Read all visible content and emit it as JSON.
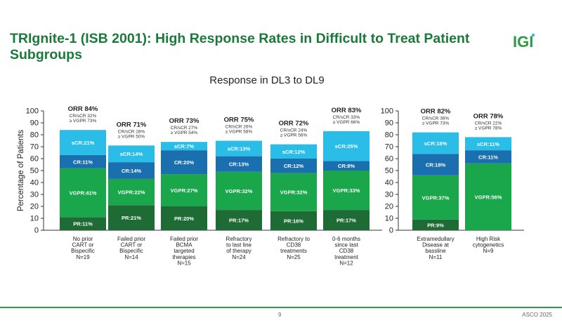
{
  "title": "TRIgnite-1 (ISB 2001): High Response Rates in Difficult to Treat Patient Subgroups",
  "logo_text": "IGI",
  "subtitle": "Response in DL3 to DL9",
  "footer": {
    "page": "9",
    "conference": "ASCO 2025"
  },
  "colors": {
    "title": "#1b7a3a",
    "PR": "#1f6b35",
    "VGPR": "#1aa64b",
    "CR": "#1a6fae",
    "sCR": "#29bde8",
    "footer_line": "#2e9a46"
  },
  "chart_data": [
    {
      "type": "bar",
      "stacked": true,
      "ylabel": "Percentage of Patients",
      "ylim": [
        0,
        100
      ],
      "yticks": [
        "0",
        "10",
        "20",
        "30",
        "40",
        "50",
        "60",
        "70",
        "80",
        "90",
        "100"
      ],
      "series_order": [
        "PR",
        "VGPR",
        "CR",
        "sCR"
      ],
      "categories": [
        {
          "label": [
            "No prior",
            "CART or",
            "Bispecific",
            "N=19"
          ],
          "orr": "ORR 84%",
          "notes": [
            "CR/sCR 32%",
            "≥ VGPR 73%"
          ],
          "segments": {
            "PR": 11,
            "VGPR": 41,
            "CR": 11,
            "sCR": 21
          },
          "seg_labels": {
            "PR": "PR:11%",
            "VGPR": "VGPR:41%",
            "CR": "CR:11%",
            "sCR": "sCR:21%"
          }
        },
        {
          "label": [
            "Failed prior",
            "CART or",
            "Bispecific",
            "N=14"
          ],
          "orr": "ORR 71%",
          "notes": [
            "CR/sCR 28%",
            "≥ VGPR 50%"
          ],
          "segments": {
            "PR": 21,
            "VGPR": 22,
            "CR": 14,
            "sCR": 14
          },
          "seg_labels": {
            "PR": "PR:21%",
            "VGPR": "VGPR:22%",
            "CR": "CR:14%",
            "sCR": "sCR:14%"
          }
        },
        {
          "label": [
            "Failed prior",
            "BCMA",
            "targeted",
            "therapies",
            "N=15"
          ],
          "orr": "ORR 73%",
          "notes": [
            "CR/sCR 27%",
            "≥ VGPR 54%"
          ],
          "segments": {
            "PR": 20,
            "VGPR": 27,
            "CR": 20,
            "sCR": 7
          },
          "seg_labels": {
            "PR": "PR:20%",
            "VGPR": "VGPR:27%",
            "CR": "CR:20%",
            "sCR": "sCR:7%"
          }
        },
        {
          "label": [
            "Refractory",
            "to last line",
            "of therapy",
            "N=24"
          ],
          "orr": "ORR 75%",
          "notes": [
            "CR/sCR 26%",
            "≥ VGPR 58%"
          ],
          "segments": {
            "PR": 17,
            "VGPR": 32,
            "CR": 13,
            "sCR": 13
          },
          "seg_labels": {
            "PR": "PR:17%",
            "VGPR": "VGPR:32%",
            "CR": "CR:13%",
            "sCR": "sCR:13%"
          }
        },
        {
          "label": [
            "Refractory to",
            "CD38",
            "treatments",
            "N=25"
          ],
          "orr": "ORR 72%",
          "notes": [
            "CR/sCR 24%",
            "≥ VGPR 56%"
          ],
          "segments": {
            "PR": 16,
            "VGPR": 32,
            "CR": 12,
            "sCR": 12
          },
          "seg_labels": {
            "PR": "PR:16%",
            "VGPR": "VGPR:32%",
            "CR": "CR:12%",
            "sCR": "sCR:12%"
          }
        },
        {
          "label": [
            "0-6 months",
            "since last",
            "CD38",
            "treatment",
            "N=12"
          ],
          "orr": "ORR 83%",
          "notes": [
            "CR/sCR 33%",
            "≥ VGPR 66%"
          ],
          "segments": {
            "PR": 17,
            "VGPR": 33,
            "CR": 8,
            "sCR": 25
          },
          "seg_labels": {
            "PR": "PR:17%",
            "VGPR": "VGPR:33%",
            "CR": "CR:8%",
            "sCR": "sCR:25%"
          }
        }
      ]
    },
    {
      "type": "bar",
      "stacked": true,
      "ylabel": "",
      "ylim": [
        0,
        100
      ],
      "yticks": [
        "0",
        "10",
        "20",
        "30",
        "40",
        "50",
        "60",
        "70",
        "80",
        "90",
        "100"
      ],
      "series_order": [
        "PR",
        "VGPR",
        "CR",
        "sCR"
      ],
      "categories": [
        {
          "label": [
            "Extramedullary",
            "Disease at",
            "bassline",
            "N=11"
          ],
          "orr": "ORR 82%",
          "notes": [
            "CR/sCR 36%",
            "≥ VGPR 73%"
          ],
          "segments": {
            "PR": 9,
            "VGPR": 37,
            "CR": 18,
            "sCR": 18
          },
          "seg_labels": {
            "PR": "PR:9%",
            "VGPR": "VGPR:37%",
            "CR": "CR:18%",
            "sCR": "sCR:18%"
          }
        },
        {
          "label": [
            "High Risk",
            "cytogenetics",
            "N=9"
          ],
          "orr": "ORR 78%",
          "notes": [
            "CR/sCR 22%",
            "≥ VGPR 78%"
          ],
          "segments": {
            "PR": 0,
            "VGPR": 56,
            "CR": 11,
            "sCR": 11
          },
          "seg_labels": {
            "PR": "",
            "VGPR": "VGPR:56%",
            "CR": "CR:11%",
            "sCR": "sCR:11%"
          }
        }
      ]
    }
  ]
}
